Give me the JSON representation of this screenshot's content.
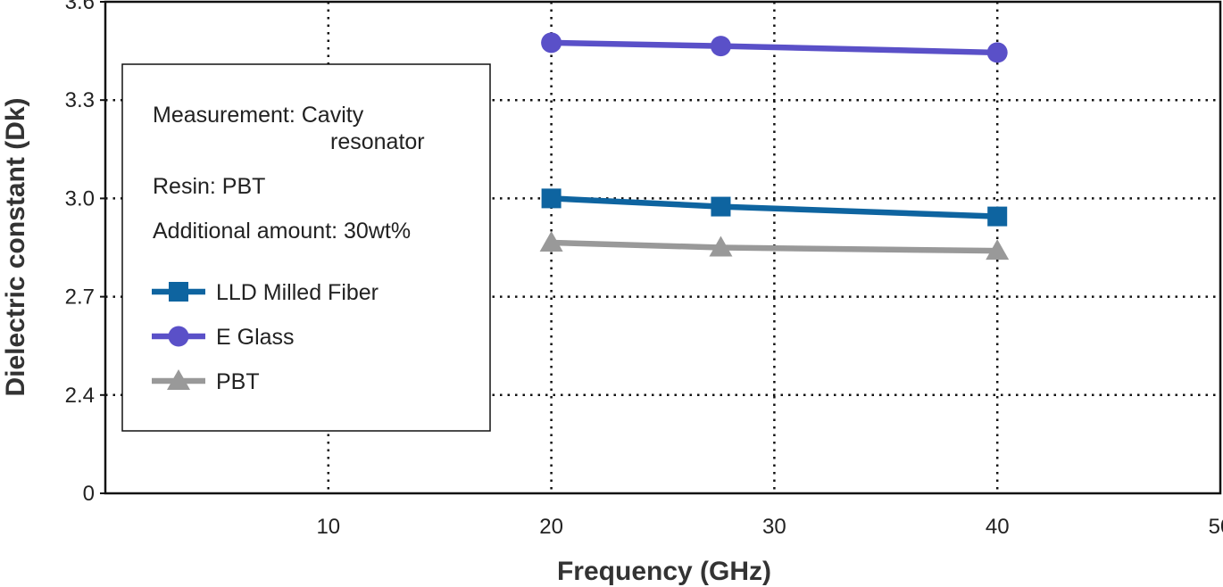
{
  "chart_data": {
    "type": "line",
    "xlabel": "Frequency (GHz)",
    "ylabel": "Dielectric constant (Dk)",
    "x_ticks": [
      "10",
      "20",
      "30",
      "40",
      "50"
    ],
    "x_tick_values": [
      10,
      20,
      30,
      40,
      50
    ],
    "y_ticks": [
      "0",
      "2.4",
      "2.7",
      "3.0",
      "3.3",
      "3.6"
    ],
    "y_tick_values": [
      2.1,
      2.4,
      2.7,
      3.0,
      3.3,
      3.6
    ],
    "xlim": [
      0,
      50
    ],
    "ylim": [
      2.1,
      3.6
    ],
    "y_axis_break": true,
    "grid": true,
    "legend_placement": "top-left",
    "notes": {
      "measurement": "Measurement: Cavity",
      "measurement_cont": "resonator",
      "resin": "Resin: PBT",
      "amount": "Additional amount: 30wt%"
    },
    "series": [
      {
        "name": "LLD Milled Fiber",
        "marker": "square",
        "color": "#0e64a0",
        "x": [
          20,
          27.6,
          40
        ],
        "y": [
          3.0,
          2.975,
          2.945
        ]
      },
      {
        "name": "E Glass",
        "marker": "circle",
        "color": "#5a50c8",
        "x": [
          20,
          27.6,
          40
        ],
        "y": [
          3.475,
          3.465,
          3.445
        ]
      },
      {
        "name": "PBT",
        "marker": "triangle",
        "color": "#999999",
        "x": [
          20,
          27.6,
          40
        ],
        "y": [
          2.865,
          2.85,
          2.84
        ]
      }
    ]
  }
}
